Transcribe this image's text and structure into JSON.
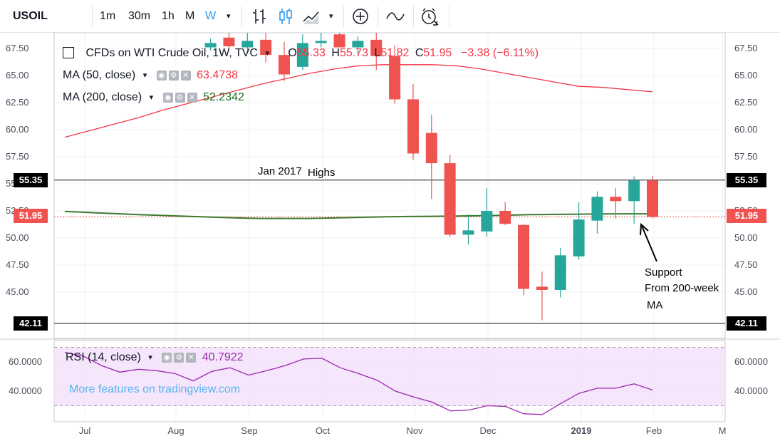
{
  "toolbar": {
    "symbol": "USOIL",
    "intervals": [
      "1m",
      "30m",
      "1h",
      "M",
      "W"
    ],
    "active_interval": "W",
    "colors": {
      "active": "#2196f3",
      "text": "#131722"
    }
  },
  "legend": {
    "main": {
      "title": "CFDs on WTI Crude Oil, 1W, TVC",
      "open_label": "O",
      "open": "55.33",
      "high_label": "H",
      "high": "55.73",
      "low_label": "L",
      "low": "51.82",
      "close_label": "C",
      "close": "51.95",
      "change": "−3.38 (−6.11%)"
    },
    "ma50": {
      "label": "MA (50, close)",
      "value": "63.4738",
      "color": "#f23645"
    },
    "ma200": {
      "label": "MA (200, close)",
      "value": "52.2342",
      "color": "#1e6b1e"
    },
    "rsi": {
      "label": "RSI (14, close)",
      "value": "40.7922",
      "color": "#9c27b0"
    }
  },
  "watermark": "More features on tradingview.com",
  "annotations": {
    "highs_a": "Jan 2017",
    "highs_b": "Highs",
    "support_1": "Support",
    "support_2": "From 200-week",
    "support_3": "MA"
  },
  "badges": {
    "upper_level": "55.35",
    "last_price": "51.95",
    "lower_level": "42.11"
  },
  "chart_data": {
    "type": "candlestick",
    "price_axis": {
      "ylim": [
        42.0,
        68.0
      ],
      "ticks": [
        "67.50",
        "65.00",
        "62.50",
        "60.00",
        "57.50",
        "55.00",
        "52.50",
        "50.00",
        "47.50",
        "45.00"
      ]
    },
    "x_axis": {
      "ticks": [
        "Jul",
        "Aug",
        "Sep",
        "Oct",
        "Nov",
        "Dec",
        "2019",
        "Feb",
        "M"
      ]
    },
    "horizontal_lines": [
      55.35,
      42.11
    ],
    "last_price": 51.95,
    "candles": [
      {
        "o": 67.6,
        "h": 68.4,
        "l": 67.3,
        "c": 68.0
      },
      {
        "o": 68.5,
        "h": 69.5,
        "l": 67.4,
        "c": 67.7
      },
      {
        "o": 67.6,
        "h": 69.5,
        "l": 67.2,
        "c": 68.2
      },
      {
        "o": 68.3,
        "h": 70.0,
        "l": 66.2,
        "c": 66.9
      },
      {
        "o": 66.9,
        "h": 68.1,
        "l": 64.5,
        "c": 65.1
      },
      {
        "o": 65.8,
        "h": 68.8,
        "l": 65.5,
        "c": 68.0
      },
      {
        "o": 68.0,
        "h": 69.0,
        "l": 67.6,
        "c": 68.2
      },
      {
        "o": 68.8,
        "h": 69.5,
        "l": 67.6,
        "c": 67.6
      },
      {
        "o": 67.6,
        "h": 68.6,
        "l": 67.0,
        "c": 68.2
      },
      {
        "o": 68.3,
        "h": 72.7,
        "l": 65.5,
        "c": 66.8
      },
      {
        "o": 66.8,
        "h": 67.8,
        "l": 62.4,
        "c": 62.8
      },
      {
        "o": 62.8,
        "h": 64.2,
        "l": 57.2,
        "c": 57.8
      },
      {
        "o": 59.7,
        "h": 61.4,
        "l": 53.6,
        "c": 56.9
      },
      {
        "o": 56.9,
        "h": 57.7,
        "l": 50.1,
        "c": 50.3
      },
      {
        "o": 50.3,
        "h": 52.2,
        "l": 49.4,
        "c": 50.7
      },
      {
        "o": 50.6,
        "h": 54.6,
        "l": 50.1,
        "c": 52.5
      },
      {
        "o": 52.5,
        "h": 53.3,
        "l": 51.2,
        "c": 51.3
      },
      {
        "o": 51.2,
        "h": 51.3,
        "l": 44.7,
        "c": 45.3
      },
      {
        "o": 45.5,
        "h": 46.9,
        "l": 42.4,
        "c": 45.2
      },
      {
        "o": 45.2,
        "h": 49.1,
        "l": 44.5,
        "c": 48.4
      },
      {
        "o": 48.3,
        "h": 53.3,
        "l": 48.0,
        "c": 51.7
      },
      {
        "o": 51.6,
        "h": 54.3,
        "l": 50.4,
        "c": 53.8
      },
      {
        "o": 53.8,
        "h": 54.6,
        "l": 51.8,
        "c": 53.4
      },
      {
        "o": 53.4,
        "h": 55.7,
        "l": 51.3,
        "c": 55.3
      },
      {
        "o": 55.3,
        "h": 55.7,
        "l": 51.8,
        "c": 51.95
      }
    ],
    "ma50": [
      [
        59.3,
        59.9,
        60.5,
        61.1,
        61.8,
        62.4,
        63.0,
        63.6,
        64.2,
        64.7,
        65.2,
        65.6,
        65.9,
        66.0,
        66.0,
        66.0,
        65.9,
        65.6,
        65.2,
        64.8,
        64.4,
        64.0,
        63.9,
        63.7,
        63.5
      ]
    ],
    "ma200": [
      52.45,
      52.35,
      52.25,
      52.15,
      52.08,
      52.0,
      51.92,
      51.85,
      51.8,
      51.8,
      51.8,
      51.85,
      51.9,
      51.95,
      51.98,
      52.0,
      52.02,
      52.05,
      52.1,
      52.15,
      52.18,
      52.2,
      52.22,
      52.23,
      52.23
    ],
    "rsi": {
      "ylim": [
        28,
        70
      ],
      "ticks": [
        "60.0000",
        "40.0000"
      ],
      "band": [
        30,
        70
      ],
      "values": [
        66.5,
        64.0,
        57.5,
        53.0,
        55.0,
        54.0,
        52.0,
        47.0,
        53.5,
        56.0,
        51.0,
        54.0,
        57.5,
        62.0,
        62.5,
        56.0,
        52.0,
        47.5,
        40.0,
        36.0,
        32.5,
        26.5,
        27.0,
        30.0,
        29.5,
        24.5,
        24.0,
        31.5,
        38.5,
        42.0,
        42.0,
        45.0,
        40.8
      ]
    }
  }
}
